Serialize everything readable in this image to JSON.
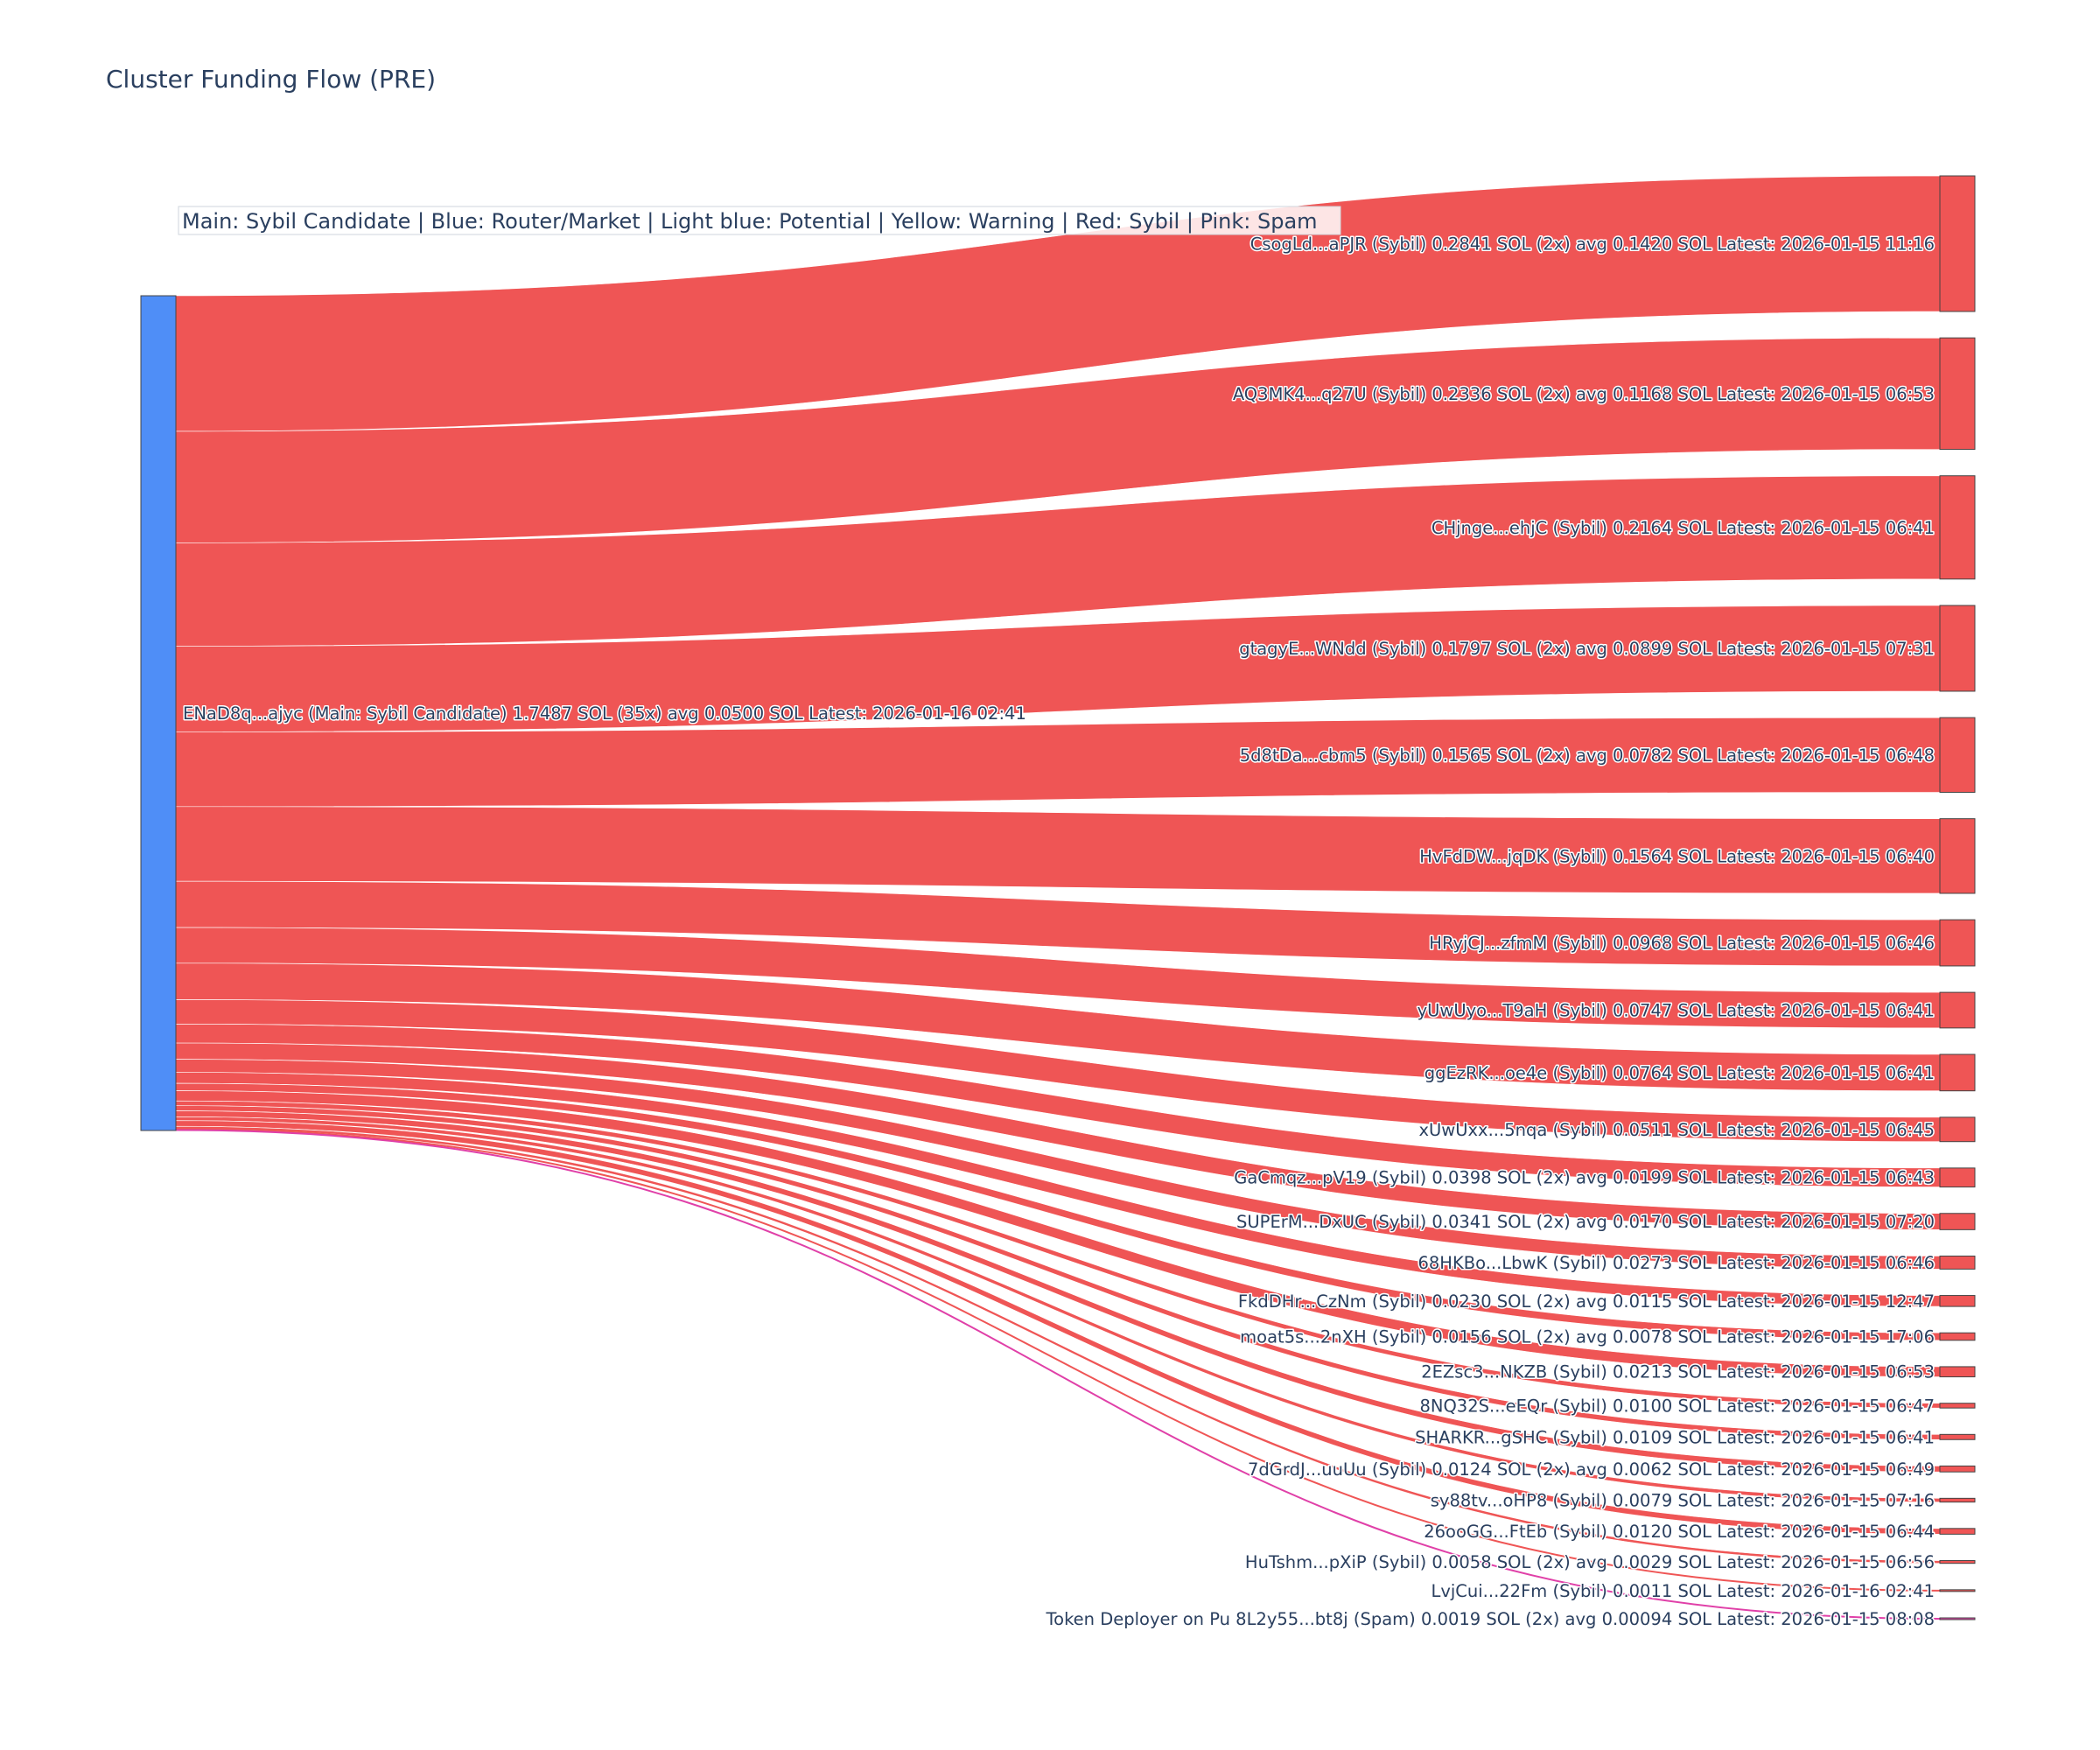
{
  "chart_data": {
    "type": "sankey",
    "title": "Cluster Funding Flow (PRE)",
    "legend_note": "Main: Sybil Candidate  |  Blue: Router/Market | Light blue: Potential | Yellow: Warning | Red: Sybil | Pink: Spam",
    "colors": {
      "main": "#4f8ef7",
      "sybil": "#ef5555",
      "spam": "#e040a8",
      "node_border": "#444444"
    },
    "source": {
      "label": "ENaD8q...ajyc (Main: Sybil Candidate) 1.7487 SOL (35x) avg 0.0500 SOL Latest: 2026-01-16 02:41",
      "role": "main",
      "value": 1.7487
    },
    "targets": [
      {
        "label": "CsogLd...aPJR (Sybil) 0.2841 SOL (2x) avg 0.1420 SOL Latest: 2026-01-15 11:16",
        "value": 0.2841,
        "role": "sybil"
      },
      {
        "label": "AQ3MK4...q27U (Sybil) 0.2336 SOL (2x) avg 0.1168 SOL Latest: 2026-01-15 06:53",
        "value": 0.2336,
        "role": "sybil"
      },
      {
        "label": "CHjnge...ehjC (Sybil) 0.2164 SOL Latest: 2026-01-15 06:41",
        "value": 0.2164,
        "role": "sybil"
      },
      {
        "label": "gtagyE...WNdd (Sybil) 0.1797 SOL (2x) avg 0.0899 SOL Latest: 2026-01-15 07:31",
        "value": 0.1797,
        "role": "sybil"
      },
      {
        "label": "5d8tDa...cbm5 (Sybil) 0.1565 SOL (2x) avg 0.0782 SOL Latest: 2026-01-15 06:48",
        "value": 0.1565,
        "role": "sybil"
      },
      {
        "label": "HvFdDW...jqDK (Sybil) 0.1564 SOL Latest: 2026-01-15 06:40",
        "value": 0.1564,
        "role": "sybil"
      },
      {
        "label": "HRyjCJ...zfmM (Sybil) 0.0968 SOL Latest: 2026-01-15 06:46",
        "value": 0.0968,
        "role": "sybil"
      },
      {
        "label": "yUwUyo...T9aH (Sybil) 0.0747 SOL Latest: 2026-01-15 06:41",
        "value": 0.0747,
        "role": "sybil"
      },
      {
        "label": "ggEzRK...oe4e (Sybil) 0.0764 SOL Latest: 2026-01-15 06:41",
        "value": 0.0764,
        "role": "sybil"
      },
      {
        "label": "xUwUxx...5nqa (Sybil) 0.0511 SOL Latest: 2026-01-15 06:45",
        "value": 0.0511,
        "role": "sybil"
      },
      {
        "label": "GaCmqz...pV19 (Sybil) 0.0398 SOL (2x) avg 0.0199 SOL Latest: 2026-01-15 06:43",
        "value": 0.0398,
        "role": "sybil"
      },
      {
        "label": "SUPErM...DxUC (Sybil) 0.0341 SOL (2x) avg 0.0170 SOL Latest: 2026-01-15 07:20",
        "value": 0.0341,
        "role": "sybil"
      },
      {
        "label": "68HKBo...LbwK (Sybil) 0.0273 SOL Latest: 2026-01-15 06:46",
        "value": 0.0273,
        "role": "sybil"
      },
      {
        "label": "FkdDHr...CzNm (Sybil) 0.0230 SOL (2x) avg 0.0115 SOL Latest: 2026-01-15 12:47",
        "value": 0.023,
        "role": "sybil"
      },
      {
        "label": "moat5s...2nXH (Sybil) 0.0156 SOL (2x) avg 0.0078 SOL Latest: 2026-01-15 17:06",
        "value": 0.0156,
        "role": "sybil"
      },
      {
        "label": "2EZsc3...NKZB (Sybil) 0.0213 SOL Latest: 2026-01-15 06:53",
        "value": 0.0213,
        "role": "sybil"
      },
      {
        "label": "8NQ32S...eEQr (Sybil) 0.0100 SOL Latest: 2026-01-15 06:47",
        "value": 0.01,
        "role": "sybil"
      },
      {
        "label": "SHARKR...gSHC (Sybil) 0.0109 SOL Latest: 2026-01-15 06:41",
        "value": 0.0109,
        "role": "sybil"
      },
      {
        "label": "7dGrdJ...uuUu (Sybil) 0.0124 SOL (2x) avg 0.0062 SOL Latest: 2026-01-15 06:49",
        "value": 0.0124,
        "role": "sybil"
      },
      {
        "label": "sy88tv...oHP8 (Sybil) 0.0079 SOL Latest: 2026-01-15 07:16",
        "value": 0.0079,
        "role": "sybil"
      },
      {
        "label": "26ooGG...FtEb (Sybil) 0.0120 SOL Latest: 2026-01-15 06:44",
        "value": 0.012,
        "role": "sybil"
      },
      {
        "label": "HuTshm...pXiP (Sybil) 0.0058 SOL (2x) avg 0.0029 SOL Latest: 2026-01-15 06:56",
        "value": 0.0058,
        "role": "sybil"
      },
      {
        "label": "LvjCui...22Fm (Sybil) 0.0011 SOL Latest: 2026-01-16 02:41",
        "value": 0.0011,
        "role": "sybil"
      },
      {
        "label": "Token Deployer on Pu 8L2y55...bt8j (Spam) 0.0019 SOL (2x) avg 0.00094 SOL Latest: 2026-01-15 08:08",
        "value": 0.0019,
        "role": "spam"
      }
    ]
  }
}
